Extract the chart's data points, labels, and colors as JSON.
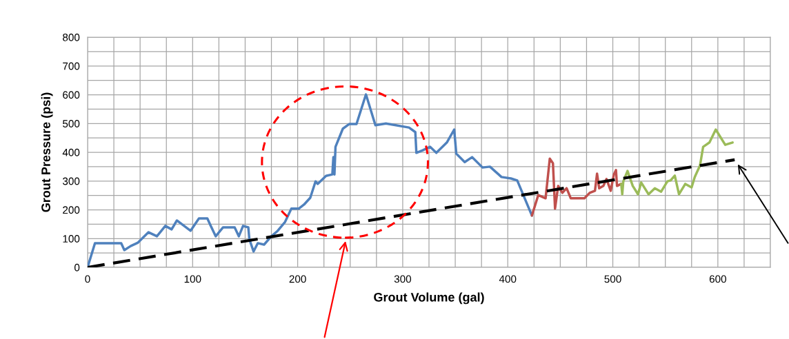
{
  "chart_data": {
    "type": "line",
    "xlabel": "Grout Volume (gal)",
    "ylabel": "Grout Pressure (psi)",
    "xlim": [
      0,
      650
    ],
    "ylim": [
      0,
      800
    ],
    "xticks": [
      0,
      {
        "value": 25,
        "label": null
      },
      {
        "value": 50,
        "label": null
      },
      {
        "value": 75,
        "label": null
      },
      100,
      {
        "value": 125,
        "label": null
      },
      {
        "value": 150,
        "label": null
      },
      {
        "value": 175,
        "label": null
      },
      200,
      {
        "value": 225,
        "label": null
      },
      {
        "value": 250,
        "label": null
      },
      {
        "value": 275,
        "label": null
      },
      300,
      {
        "value": 325,
        "label": null
      },
      {
        "value": 350,
        "label": null
      },
      {
        "value": 375,
        "label": null
      },
      400,
      {
        "value": 425,
        "label": null
      },
      {
        "value": 450,
        "label": null
      },
      {
        "value": 475,
        "label": null
      },
      500,
      {
        "value": 525,
        "label": null
      },
      {
        "value": 550,
        "label": null
      },
      {
        "value": 575,
        "label": null
      },
      600,
      {
        "value": 625,
        "label": null
      },
      {
        "value": 650,
        "label": null
      }
    ],
    "yticks": [
      0,
      {
        "value": 50,
        "label": null
      },
      100,
      {
        "value": 150,
        "label": null
      },
      200,
      {
        "value": 250,
        "label": null
      },
      300,
      {
        "value": 350,
        "label": null
      },
      400,
      {
        "value": 450,
        "label": null
      },
      500,
      {
        "value": 550,
        "label": null
      },
      600,
      {
        "value": 650,
        "label": null
      },
      700,
      {
        "value": 750,
        "label": null
      },
      800
    ],
    "grid": true,
    "legend": false,
    "marker": "none",
    "line_style": "solid",
    "series": [
      {
        "color": "#4f81bd",
        "x": [
          0,
          7,
          32,
          35,
          41,
          48,
          58,
          66,
          74,
          80,
          85,
          98,
          106,
          114,
          117,
          122,
          129,
          140,
          144,
          148,
          153,
          154,
          158,
          162,
          168,
          175,
          181,
          188,
          194,
          201,
          206,
          212,
          217,
          219,
          227,
          233,
          234,
          235,
          236,
          243,
          249,
          256,
          265,
          274,
          284,
          306,
          312,
          313,
          319,
          326,
          332,
          342,
          349,
          351,
          359,
          366,
          376,
          383,
          394,
          403,
          409,
          423
        ],
        "values": [
          0,
          84,
          84,
          60,
          74,
          86,
          122,
          108,
          144,
          132,
          163,
          127,
          170,
          170,
          146,
          108,
          139,
          139,
          108,
          144,
          139,
          98,
          55,
          84,
          79,
          108,
          127,
          158,
          204,
          204,
          218,
          242,
          299,
          290,
          318,
          323,
          383,
          323,
          419,
          482,
          498,
          498,
          601,
          494,
          500,
          486,
          470,
          398,
          407,
          419,
          398,
          434,
          479,
          395,
          366,
          383,
          347,
          350,
          314,
          309,
          302,
          180
        ]
      },
      {
        "color": "#c0504d",
        "x": [
          423,
          429,
          436,
          440,
          443,
          445,
          448,
          452,
          456,
          460,
          473,
          478,
          483,
          485,
          487,
          491,
          494,
          498,
          501,
          503,
          504,
          508
        ],
        "values": [
          180,
          251,
          240,
          378,
          362,
          204,
          283,
          259,
          275,
          240,
          240,
          259,
          266,
          326,
          275,
          283,
          307,
          266,
          323,
          338,
          283,
          290
        ]
      },
      {
        "color": "#9bbb59",
        "x": [
          508,
          509,
          510,
          514,
          519,
          524,
          527,
          534,
          540,
          546,
          552,
          555,
          559,
          563,
          569,
          575,
          578,
          583,
          586,
          592,
          598,
          607,
          614
        ],
        "values": [
          290,
          254,
          299,
          335,
          283,
          254,
          295,
          254,
          275,
          263,
          299,
          302,
          319,
          254,
          290,
          278,
          314,
          354,
          419,
          434,
          479,
          426,
          434
        ]
      },
      {
        "color": "#000000",
        "line_style": "dashed",
        "x": [
          0,
          616
        ],
        "values": [
          0,
          374
        ]
      }
    ]
  }
}
